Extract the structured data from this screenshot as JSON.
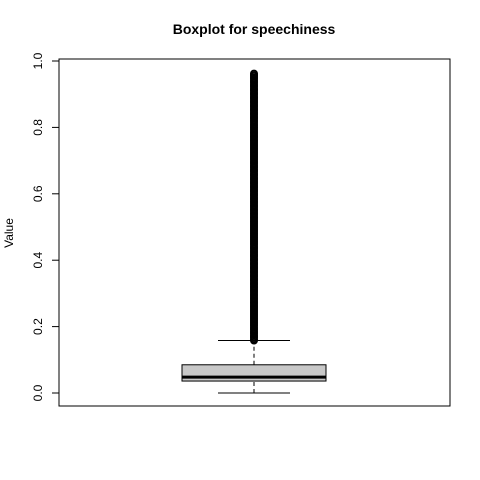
{
  "chart_data": {
    "type": "boxplot",
    "title": "Boxplot for speechiness",
    "xlabel": "",
    "ylabel": "Value",
    "ylim": [
      -0.04,
      1.0
    ],
    "y_ticks": [
      0.0,
      0.2,
      0.4,
      0.6,
      0.8,
      1.0
    ],
    "y_tick_labels": [
      "0.0",
      "0.2",
      "0.4",
      "0.6",
      "0.8",
      "1.0"
    ],
    "box": {
      "min_whisker": 0.0,
      "q1": 0.036,
      "median": 0.048,
      "q3": 0.085,
      "max_whisker": 0.158
    },
    "outliers": {
      "from": 0.158,
      "to": 0.965
    },
    "box_fill": "#c8c8c8",
    "line_color": "#000000",
    "grid": false
  }
}
